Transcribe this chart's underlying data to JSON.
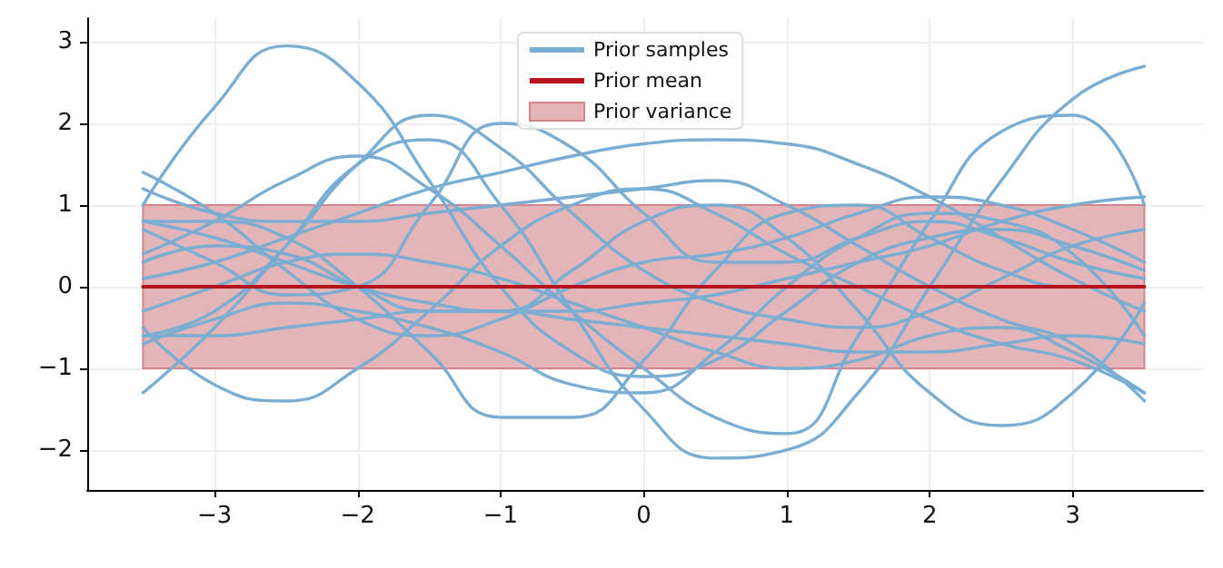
{
  "chart_data": {
    "type": "line",
    "xlim": [
      -3.89,
      3.91
    ],
    "ylim": [
      -2.49,
      3.29
    ],
    "xticks": [
      -3,
      -2,
      -1,
      0,
      1,
      2,
      3
    ],
    "yticks": [
      -2,
      -1,
      0,
      1,
      2,
      3
    ],
    "grid": true,
    "legend": "top",
    "marker": "none",
    "line_style": "solid",
    "x": [
      -3.5,
      -3,
      -2.5,
      -2,
      -1.5,
      -1,
      -0.5,
      0,
      0.5,
      1,
      1.5,
      2,
      2.5,
      3,
      3.5
    ],
    "series": [
      {
        "name": "Prior samples",
        "color": "#7aadd2",
        "values": [
          1.0,
          2.2,
          2.95,
          2.5,
          1.3,
          0.0,
          -0.8,
          -1.1,
          -0.9,
          -0.3,
          0.3,
          0.6,
          0.7,
          0.5,
          0.2
        ]
      },
      {
        "color": "#7aadd2",
        "values": [
          -1.3,
          -0.5,
          0.5,
          1.5,
          1.8,
          1.0,
          -0.3,
          -1.5,
          -2.1,
          -2.0,
          -1.3,
          0.0,
          1.3,
          2.3,
          2.7
        ]
      },
      {
        "color": "#7aadd2",
        "values": [
          0.4,
          0.8,
          1.3,
          1.6,
          1.2,
          0.5,
          -0.3,
          -1.0,
          -1.6,
          -1.8,
          -0.6,
          0.8,
          1.9,
          2.1,
          1.0
        ]
      },
      {
        "color": "#7aadd2",
        "values": [
          -0.6,
          -0.3,
          0.5,
          1.5,
          2.1,
          1.7,
          0.9,
          0.2,
          -0.2,
          -0.4,
          -0.5,
          -0.3,
          0.1,
          0.5,
          0.7
        ]
      },
      {
        "color": "#7aadd2",
        "values": [
          0.7,
          0.3,
          -0.1,
          0.0,
          1.0,
          2.0,
          1.7,
          0.9,
          0.3,
          0.3,
          0.6,
          0.8,
          0.6,
          0.3,
          0.1
        ]
      },
      {
        "color": "#7aadd2",
        "values": [
          0.8,
          0.8,
          0.6,
          0.0,
          -0.8,
          -1.6,
          -1.6,
          -0.9,
          0.2,
          0.9,
          1.0,
          0.6,
          0.2,
          0.0,
          0.0
        ]
      },
      {
        "color": "#7aadd2",
        "values": [
          0.1,
          0.3,
          0.6,
          0.9,
          1.2,
          1.4,
          1.6,
          1.75,
          1.8,
          1.75,
          1.5,
          1.1,
          0.6,
          0.1,
          -0.3
        ]
      },
      {
        "color": "#7aadd2",
        "values": [
          0.3,
          0.5,
          0.4,
          0.0,
          -0.3,
          -0.3,
          0.2,
          0.8,
          1.0,
          0.6,
          -0.3,
          -1.3,
          -1.7,
          -1.3,
          -0.2
        ]
      },
      {
        "color": "#7aadd2",
        "values": [
          -0.5,
          -1.2,
          -1.4,
          -1.0,
          -0.3,
          0.5,
          1.0,
          1.2,
          0.9,
          0.4,
          0.0,
          -0.4,
          -0.7,
          -0.9,
          -1.3
        ]
      },
      {
        "color": "#7aadd2",
        "values": [
          1.4,
          0.9,
          0.2,
          -0.4,
          -0.6,
          -0.4,
          0.0,
          0.3,
          0.4,
          0.6,
          0.9,
          1.1,
          1.0,
          0.7,
          0.3
        ]
      },
      {
        "color": "#7aadd2",
        "values": [
          -0.3,
          0.0,
          0.3,
          0.4,
          0.3,
          0.1,
          -0.2,
          -0.5,
          -0.8,
          -1.0,
          -0.9,
          -0.6,
          -0.5,
          -0.8,
          -1.3
        ]
      },
      {
        "color": "#7aadd2",
        "values": [
          -0.7,
          -0.4,
          -0.2,
          -0.3,
          -0.5,
          -0.8,
          -1.2,
          -1.3,
          -0.8,
          0.0,
          0.6,
          0.9,
          0.8,
          0.4,
          -0.6
        ]
      },
      {
        "color": "#7aadd2",
        "values": [
          0.8,
          0.6,
          0.3,
          0.0,
          -0.2,
          -0.3,
          -0.3,
          -0.2,
          -0.1,
          0.1,
          0.3,
          0.5,
          0.8,
          1.0,
          1.1
        ]
      },
      {
        "color": "#7aadd2",
        "values": [
          -0.6,
          -0.6,
          -0.5,
          -0.4,
          -0.3,
          -0.3,
          -0.4,
          -0.5,
          -0.6,
          -0.7,
          -0.8,
          -0.8,
          -0.7,
          -0.6,
          -0.7
        ]
      },
      {
        "color": "#7aadd2",
        "values": [
          1.2,
          0.9,
          0.8,
          0.8,
          0.9,
          1.0,
          1.1,
          1.2,
          1.3,
          1.0,
          0.5,
          0.0,
          -0.4,
          -0.7,
          -1.4
        ]
      },
      {
        "name": "Prior mean",
        "color": "#b5161e",
        "x": [
          -3.5,
          3.5
        ],
        "values": [
          0,
          0
        ]
      }
    ],
    "bands": [
      {
        "axis": "y",
        "from": -1,
        "to": 1,
        "label": "Prior variance",
        "color": "#e3b4b8"
      }
    ]
  }
}
